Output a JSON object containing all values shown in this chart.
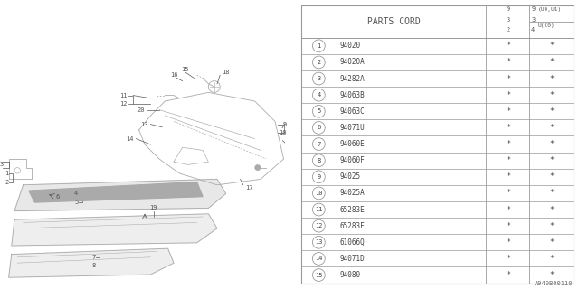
{
  "bg_color": "#ffffff",
  "parts_cord_header": "PARTS CORD",
  "watermark": "A940B00110",
  "rows": [
    [
      "1",
      "94020",
      "*",
      "*"
    ],
    [
      "2",
      "94020A",
      "*",
      "*"
    ],
    [
      "3",
      "94282A",
      "*",
      "*"
    ],
    [
      "4",
      "94063B",
      "*",
      "*"
    ],
    [
      "5",
      "94063C",
      "*",
      "*"
    ],
    [
      "6",
      "94071U",
      "*",
      "*"
    ],
    [
      "7",
      "94060E",
      "*",
      "*"
    ],
    [
      "8",
      "94060F",
      "*",
      "*"
    ],
    [
      "9",
      "94025",
      "*",
      "*"
    ],
    [
      "10",
      "94025A",
      "*",
      "*"
    ],
    [
      "11",
      "65283E",
      "*",
      "*"
    ],
    [
      "12",
      "65283F",
      "*",
      "*"
    ],
    [
      "13",
      "61066Q",
      "*",
      "*"
    ],
    [
      "14",
      "94071D",
      "*",
      "*"
    ],
    [
      "15",
      "94080",
      "*",
      "*"
    ]
  ],
  "line_color": "#aaaaaa",
  "text_color": "#555555",
  "table_line_color": "#999999"
}
